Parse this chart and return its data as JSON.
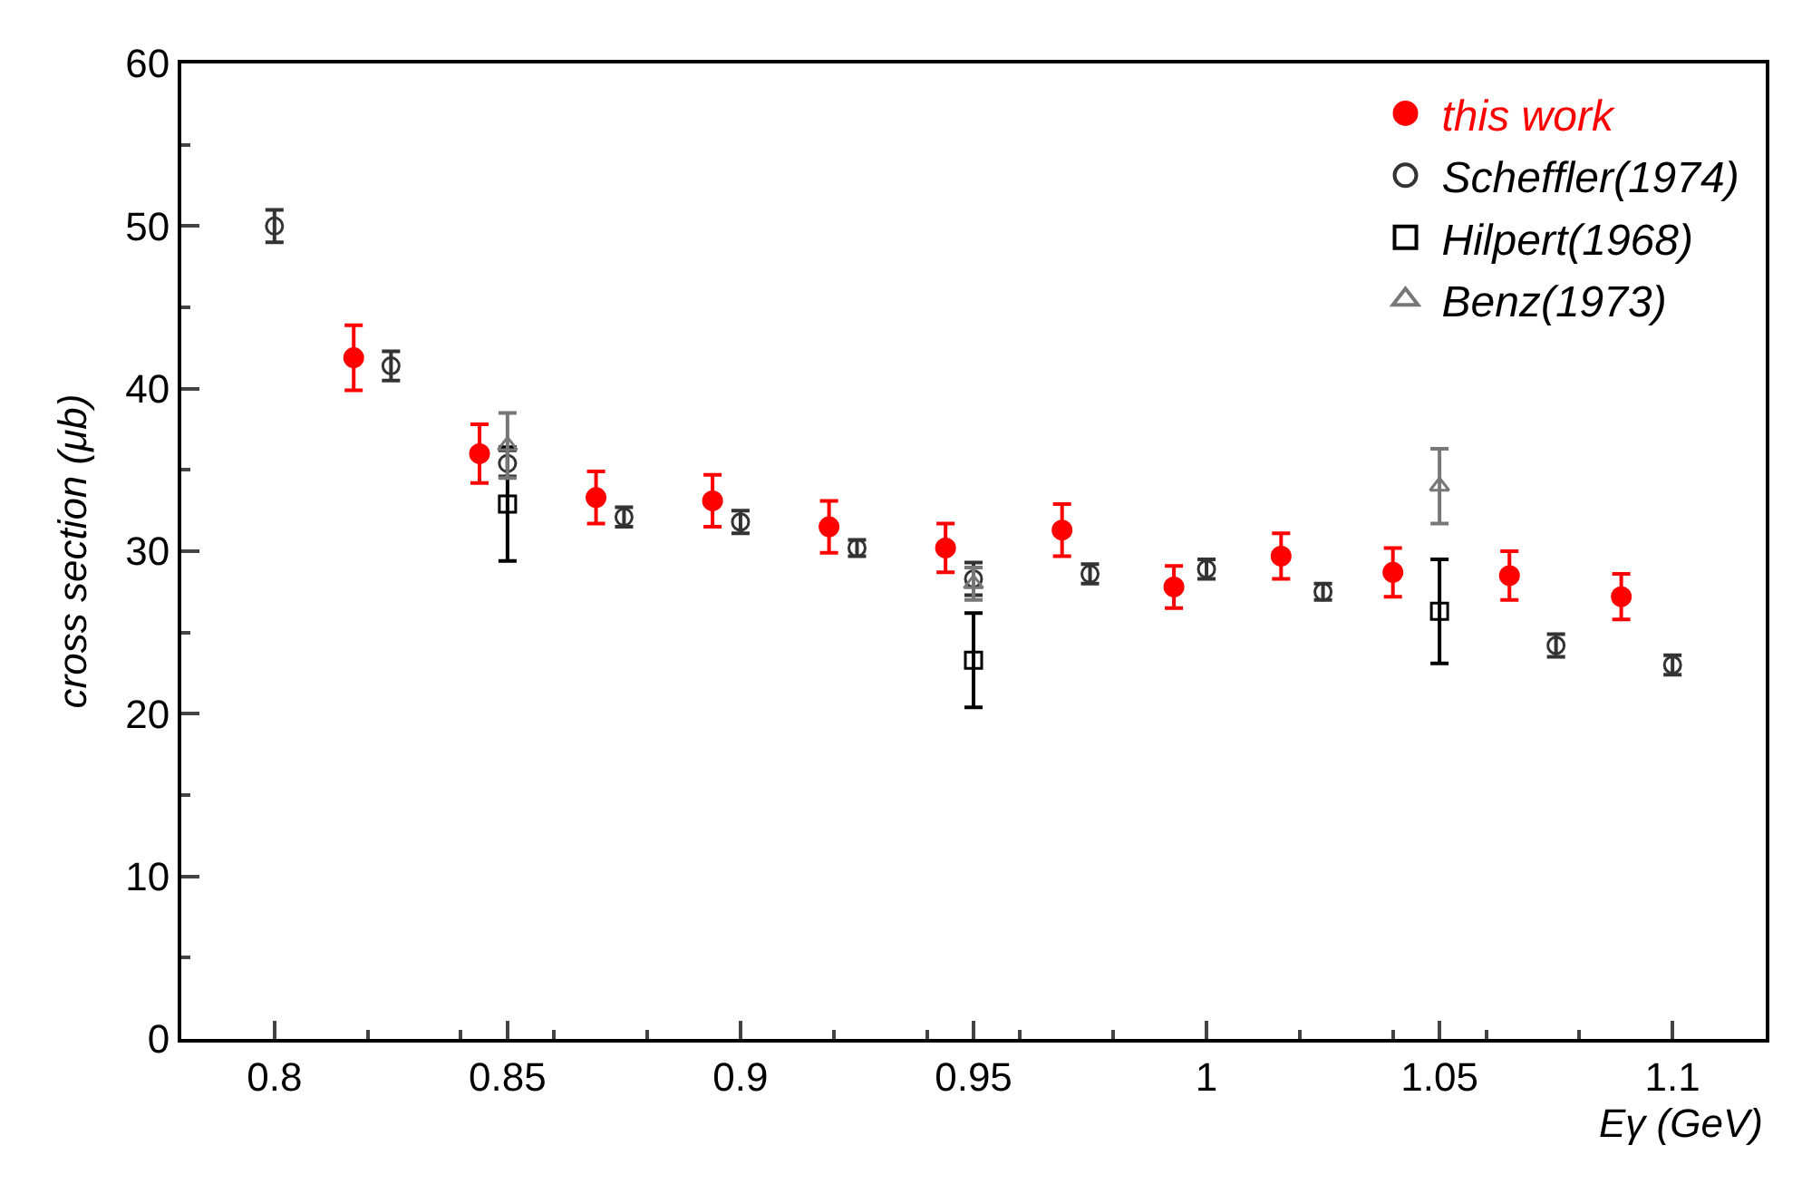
{
  "chart_data": {
    "type": "scatter",
    "xlabel": "Eγ (GeV)",
    "ylabel": "cross section (μb)",
    "xlim": [
      0.78,
      1.12
    ],
    "xticks": [
      0.8,
      0.85,
      0.9,
      0.95,
      1,
      1.05,
      1.1
    ],
    "ylim": [
      0,
      60
    ],
    "yticks": [
      0,
      10,
      20,
      30,
      40,
      50,
      60
    ],
    "legend": "top right",
    "series": [
      {
        "name": "this work",
        "color": "#ff0000",
        "marker": "circle",
        "x": [
          0.817,
          0.844,
          0.869,
          0.894,
          0.919,
          0.944,
          0.969,
          0.993,
          1.016,
          1.04,
          1.065,
          1.089
        ],
        "values": [
          41.9,
          36.0,
          33.3,
          33.1,
          31.5,
          30.2,
          31.3,
          27.8,
          29.7,
          28.7,
          28.5,
          27.2
        ],
        "errors": [
          2.0,
          1.8,
          1.6,
          1.6,
          1.6,
          1.5,
          1.6,
          1.3,
          1.4,
          1.5,
          1.5,
          1.4
        ]
      },
      {
        "name": "Scheffler(1974)",
        "color": "#333333",
        "marker": "circle",
        "x": [
          0.8,
          0.825,
          0.85,
          0.875,
          0.9,
          0.925,
          0.95,
          0.975,
          1.0,
          1.025,
          1.075,
          1.1
        ],
        "values": [
          50.0,
          41.4,
          35.4,
          32.1,
          31.8,
          30.2,
          28.3,
          28.6,
          28.9,
          27.5,
          24.2,
          23.0
        ],
        "errors": [
          1.0,
          0.9,
          0.8,
          0.6,
          0.7,
          0.5,
          1.0,
          0.6,
          0.6,
          0.5,
          0.7,
          0.6
        ]
      },
      {
        "name": "Hilpert(1968)",
        "color": "#000000",
        "marker": "square",
        "x": [
          0.85,
          0.95,
          1.05
        ],
        "values": [
          32.9,
          23.3,
          26.3
        ],
        "errors": [
          3.5,
          2.9,
          3.2
        ]
      },
      {
        "name": "Benz(1973)",
        "color": "#777777",
        "marker": "triangle",
        "x": [
          0.85,
          0.95,
          1.05
        ],
        "values": [
          36.5,
          28.0,
          34.0
        ],
        "errors": [
          2.0,
          1.0,
          2.3
        ]
      }
    ]
  }
}
